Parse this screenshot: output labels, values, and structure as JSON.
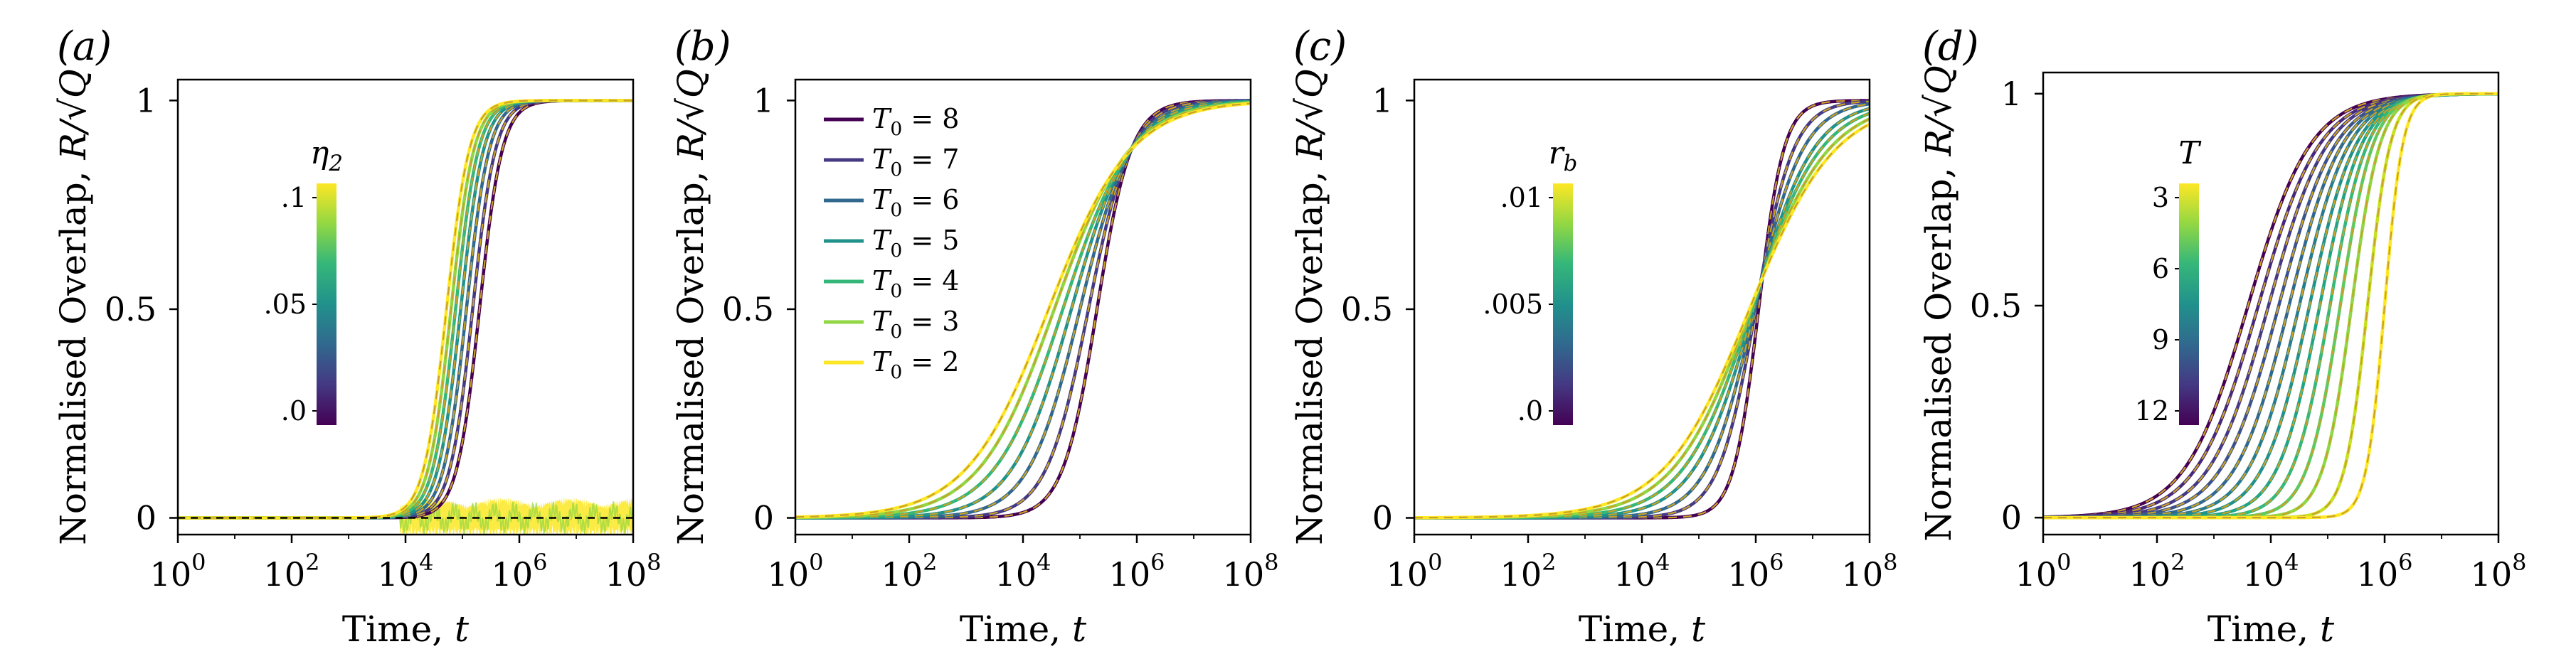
{
  "figure": {
    "panels": [
      {
        "id": "a",
        "label": "(a)",
        "ylabel": "Normalised Overlap, R/√Q",
        "xlabel": "Time, t",
        "colorbar": {
          "title": "η2",
          "ticks": [
            ".1",
            ".05",
            ".0"
          ]
        }
      },
      {
        "id": "b",
        "label": "(b)",
        "ylabel": "Normalised Overlap, R/√Q",
        "xlabel": "Time, t",
        "legend": [
          "T0 = 8",
          "T0 = 7",
          "T0 = 6",
          "T0 = 5",
          "T0 = 4",
          "T0 = 3",
          "T0 = 2"
        ]
      },
      {
        "id": "c",
        "label": "(c)",
        "ylabel": "Normalised Overlap, R/√Q",
        "xlabel": "Time, t",
        "colorbar": {
          "title": "rb",
          "ticks": [
            ".01",
            ".005",
            ".0"
          ]
        }
      },
      {
        "id": "d",
        "label": "(d)",
        "ylabel": "Normalised Overlap, R/√Q",
        "xlabel": "Time, t",
        "colorbar": {
          "title": "T",
          "ticks": [
            "3",
            "6",
            "9",
            "12"
          ]
        }
      }
    ]
  },
  "chart_data": [
    {
      "type": "line",
      "panel": "a",
      "xscale": "log",
      "xlim": [
        1,
        100000000
      ],
      "ylim": [
        -0.04,
        1.05
      ],
      "xticks": [
        "10^0",
        "10^2",
        "10^4",
        "10^6",
        "10^8"
      ],
      "yticks": [
        0,
        0.5,
        1
      ],
      "ytick_labels": [
        "0",
        "0.5",
        "1"
      ],
      "colormap": "viridis",
      "series": [
        {
          "param": 0.0,
          "midpoint_log10": 5.3,
          "width": 0.2,
          "color": "#440154"
        },
        {
          "param": 0.017,
          "midpoint_log10": 5.18,
          "width": 0.2,
          "color": "#443983"
        },
        {
          "param": 0.033,
          "midpoint_log10": 5.07,
          "width": 0.2,
          "color": "#31688e"
        },
        {
          "param": 0.05,
          "midpoint_log10": 4.97,
          "width": 0.2,
          "color": "#21918c"
        },
        {
          "param": 0.067,
          "midpoint_log10": 4.88,
          "width": 0.2,
          "color": "#35b779"
        },
        {
          "param": 0.083,
          "midpoint_log10": 4.8,
          "width": 0.2,
          "color": "#90d743"
        },
        {
          "param": 0.1,
          "midpoint_log10": 4.72,
          "width": 0.2,
          "color": "#fde725"
        }
      ],
      "noise_band": {
        "x_start_log10": 3.9,
        "x_end_log10": 8,
        "amplitude": 0.05,
        "color": "#fde725"
      }
    },
    {
      "type": "line",
      "panel": "b",
      "xscale": "log",
      "xlim": [
        1,
        100000000
      ],
      "ylim": [
        -0.04,
        1.05
      ],
      "xticks": [
        "10^0",
        "10^2",
        "10^4",
        "10^6",
        "10^8"
      ],
      "yticks": [
        0,
        0.5,
        1
      ],
      "ytick_labels": [
        "0",
        "0.5",
        "1"
      ],
      "series": [
        {
          "name": "T0 = 8",
          "midpoint_log10": 5.3,
          "width": 0.3,
          "color": "#440154"
        },
        {
          "name": "T0 = 7",
          "midpoint_log10": 5.15,
          "width": 0.37,
          "color": "#443983"
        },
        {
          "name": "T0 = 6",
          "midpoint_log10": 5.0,
          "width": 0.45,
          "color": "#31688e"
        },
        {
          "name": "T0 = 5",
          "midpoint_log10": 4.85,
          "width": 0.52,
          "color": "#21918c"
        },
        {
          "name": "T0 = 4",
          "midpoint_log10": 4.7,
          "width": 0.6,
          "color": "#35b779"
        },
        {
          "name": "T0 = 3",
          "midpoint_log10": 4.55,
          "width": 0.66,
          "color": "#90d743"
        },
        {
          "name": "T0 = 2",
          "midpoint_log10": 4.45,
          "width": 0.72,
          "color": "#fde725"
        }
      ]
    },
    {
      "type": "line",
      "panel": "c",
      "xscale": "log",
      "xlim": [
        1,
        100000000
      ],
      "ylim": [
        -0.04,
        1.05
      ],
      "xticks": [
        "10^0",
        "10^2",
        "10^4",
        "10^6",
        "10^8"
      ],
      "yticks": [
        0,
        0.5,
        1
      ],
      "ytick_labels": [
        "0",
        "0.5",
        "1"
      ],
      "colormap": "viridis",
      "series": [
        {
          "param": 0.0,
          "midpoint_log10": 6.05,
          "width": 0.22,
          "color": "#440154"
        },
        {
          "param": 0.002,
          "midpoint_log10": 6.0,
          "width": 0.33,
          "color": "#443983"
        },
        {
          "param": 0.0035,
          "midpoint_log10": 5.98,
          "width": 0.42,
          "color": "#31688e"
        },
        {
          "param": 0.005,
          "midpoint_log10": 5.96,
          "width": 0.52,
          "color": "#21918c"
        },
        {
          "param": 0.0065,
          "midpoint_log10": 5.93,
          "width": 0.6,
          "color": "#35b779"
        },
        {
          "param": 0.008,
          "midpoint_log10": 5.91,
          "width": 0.68,
          "color": "#90d743"
        },
        {
          "param": 0.01,
          "midpoint_log10": 5.89,
          "width": 0.75,
          "color": "#fde725"
        }
      ]
    },
    {
      "type": "line",
      "panel": "d",
      "xscale": "log",
      "xlim": [
        1,
        100000000
      ],
      "ylim": [
        -0.04,
        1.05
      ],
      "xticks": [
        "10^0",
        "10^2",
        "10^4",
        "10^6",
        "10^8"
      ],
      "yticks": [
        0,
        0.5,
        1
      ],
      "ytick_labels": [
        "0",
        "0.5",
        "1"
      ],
      "colormap": "viridis",
      "series": [
        {
          "param": 13,
          "midpoint_log10": 3.6,
          "width": 0.55,
          "color": "#440154"
        },
        {
          "param": 12,
          "midpoint_log10": 3.78,
          "width": 0.54,
          "color": "#46297b"
        },
        {
          "param": 11,
          "midpoint_log10": 3.96,
          "width": 0.52,
          "color": "#443983"
        },
        {
          "param": 10,
          "midpoint_log10": 4.14,
          "width": 0.5,
          "color": "#3b528b"
        },
        {
          "param": 9,
          "midpoint_log10": 4.32,
          "width": 0.47,
          "color": "#31688e"
        },
        {
          "param": 8,
          "midpoint_log10": 4.5,
          "width": 0.44,
          "color": "#287c8e"
        },
        {
          "param": 7,
          "midpoint_log10": 4.68,
          "width": 0.41,
          "color": "#21918c"
        },
        {
          "param": 6,
          "midpoint_log10": 4.86,
          "width": 0.37,
          "color": "#20a486"
        },
        {
          "param": 5,
          "midpoint_log10": 5.04,
          "width": 0.33,
          "color": "#35b779"
        },
        {
          "param": 4,
          "midpoint_log10": 5.22,
          "width": 0.29,
          "color": "#5ec962"
        },
        {
          "param": 3,
          "midpoint_log10": 5.42,
          "width": 0.25,
          "color": "#90d743"
        },
        {
          "param": 2,
          "midpoint_log10": 5.7,
          "width": 0.2,
          "color": "#c8e020"
        },
        {
          "param": 1,
          "midpoint_log10": 6.0,
          "width": 0.16,
          "color": "#fde725"
        }
      ]
    }
  ]
}
